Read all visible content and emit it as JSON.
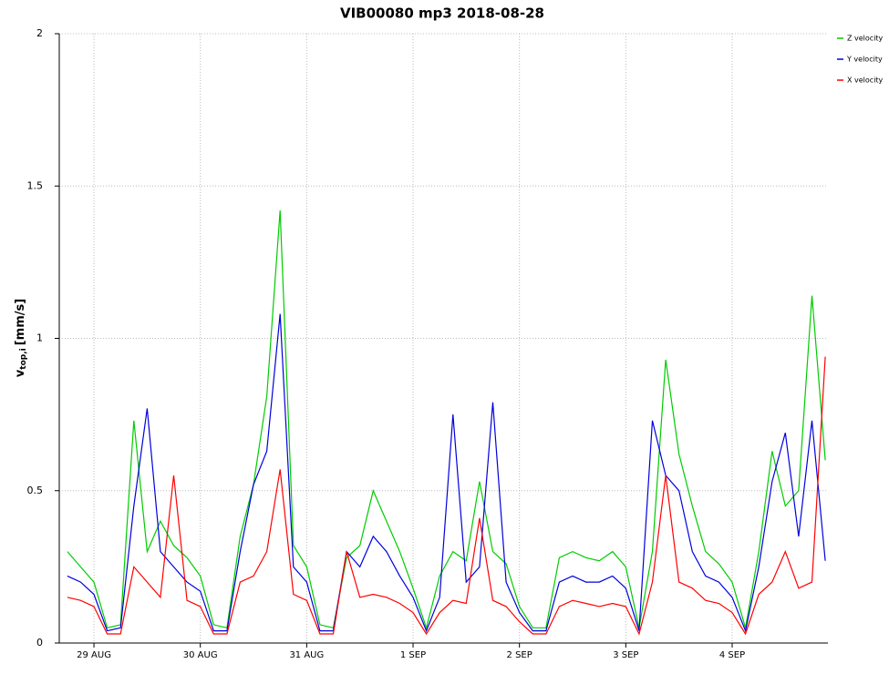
{
  "chart_data": {
    "type": "line",
    "title": "VIB00080 mp3 2018-08-28",
    "y_label": "v",
    "y_label_sub": "top,i",
    "y_label_unit": "[mm/s]",
    "x": [
      0.75,
      0.875,
      1,
      1.125,
      1.25,
      1.375,
      1.5,
      1.625,
      1.75,
      1.875,
      2,
      2.125,
      2.25,
      2.375,
      2.5,
      2.625,
      2.75,
      2.875,
      3,
      3.125,
      3.25,
      3.375,
      3.5,
      3.625,
      3.75,
      3.875,
      4,
      4.125,
      4.25,
      4.375,
      4.5,
      4.625,
      4.75,
      4.875,
      5,
      5.125,
      5.25,
      5.375,
      5.5,
      5.625,
      5.75,
      5.875,
      6,
      6.125,
      6.25,
      6.375,
      6.5,
      6.625,
      6.75,
      6.875,
      7,
      7.125,
      7.25,
      7.375,
      7.5,
      7.625,
      7.75,
      7.875
    ],
    "series": [
      {
        "name": "Z velocity",
        "color": "#00cc00",
        "values": [
          0.3,
          0.25,
          0.2,
          0.05,
          0.06,
          0.73,
          0.3,
          0.4,
          0.32,
          0.28,
          0.22,
          0.06,
          0.05,
          0.35,
          0.52,
          0.81,
          1.42,
          0.32,
          0.25,
          0.06,
          0.05,
          0.28,
          0.32,
          0.5,
          0.4,
          0.3,
          0.18,
          0.05,
          0.22,
          0.3,
          0.27,
          0.53,
          0.3,
          0.26,
          0.12,
          0.05,
          0.05,
          0.28,
          0.3,
          0.28,
          0.27,
          0.3,
          0.25,
          0.05,
          0.3,
          0.93,
          0.62,
          0.45,
          0.3,
          0.26,
          0.2,
          0.05,
          0.3,
          0.63,
          0.45,
          0.5,
          1.14,
          0.6
        ]
      },
      {
        "name": "Y velocity",
        "color": "#0000dd",
        "values": [
          0.22,
          0.2,
          0.16,
          0.04,
          0.05,
          0.45,
          0.77,
          0.3,
          0.25,
          0.2,
          0.17,
          0.04,
          0.04,
          0.3,
          0.52,
          0.63,
          1.08,
          0.25,
          0.2,
          0.04,
          0.04,
          0.3,
          0.25,
          0.35,
          0.3,
          0.22,
          0.15,
          0.04,
          0.15,
          0.75,
          0.2,
          0.25,
          0.79,
          0.2,
          0.1,
          0.04,
          0.04,
          0.2,
          0.22,
          0.2,
          0.2,
          0.22,
          0.18,
          0.04,
          0.73,
          0.55,
          0.5,
          0.3,
          0.22,
          0.2,
          0.15,
          0.04,
          0.25,
          0.53,
          0.69,
          0.35,
          0.73,
          0.27
        ]
      },
      {
        "name": "X velocity",
        "color": "#ff0000",
        "values": [
          0.15,
          0.14,
          0.12,
          0.03,
          0.03,
          0.25,
          0.2,
          0.15,
          0.55,
          0.14,
          0.12,
          0.03,
          0.03,
          0.2,
          0.22,
          0.3,
          0.57,
          0.16,
          0.14,
          0.03,
          0.03,
          0.3,
          0.15,
          0.16,
          0.15,
          0.13,
          0.1,
          0.03,
          0.1,
          0.14,
          0.13,
          0.41,
          0.14,
          0.12,
          0.07,
          0.03,
          0.03,
          0.12,
          0.14,
          0.13,
          0.12,
          0.13,
          0.12,
          0.03,
          0.2,
          0.55,
          0.2,
          0.18,
          0.14,
          0.13,
          0.1,
          0.03,
          0.16,
          0.2,
          0.3,
          0.18,
          0.2,
          0.94
        ]
      }
    ],
    "xlim": [
      0.674,
      7.9
    ],
    "xticks": [
      {
        "value": 1,
        "label": "29 AUG"
      },
      {
        "value": 2,
        "label": "30 AUG"
      },
      {
        "value": 3,
        "label": "31 AUG"
      },
      {
        "value": 4,
        "label": "1 SEP"
      },
      {
        "value": 5,
        "label": "2 SEP"
      },
      {
        "value": 6,
        "label": "3 SEP"
      },
      {
        "value": 7,
        "label": "4 SEP"
      }
    ],
    "ylim": [
      0,
      2
    ],
    "yticks": [
      0,
      0.5,
      1,
      1.5,
      2
    ],
    "grid": true,
    "legend": "top-right"
  }
}
